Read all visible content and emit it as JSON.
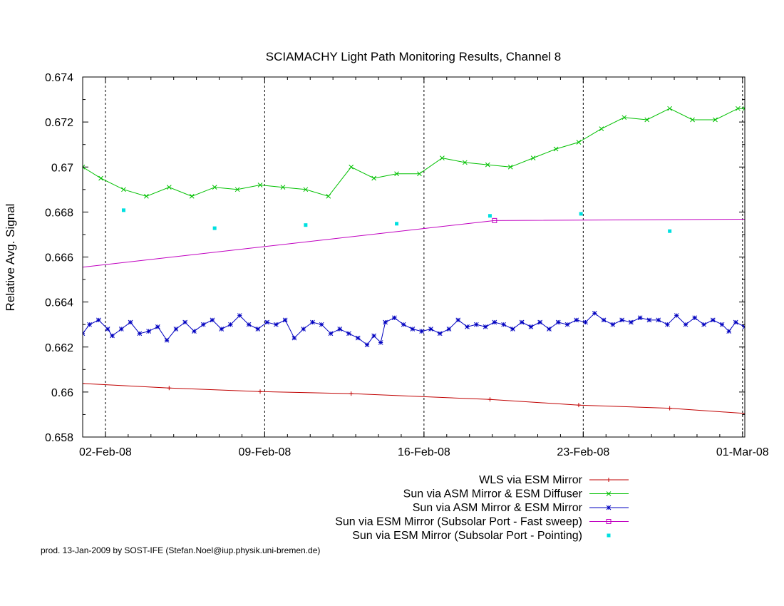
{
  "chart_data": {
    "type": "line",
    "title": "SCIAMACHY Light Path Monitoring Results, Channel 8",
    "xlabel": "",
    "ylabel": "Relative Avg. Signal",
    "x_unit": "day of 2008 (01-Feb-08 = 32)",
    "xlim": [
      31.7,
      60.8
    ],
    "ylim": [
      0.658,
      0.674
    ],
    "x_ticks": [
      {
        "x": 32.7,
        "label": "02-Feb-08"
      },
      {
        "x": 39.7,
        "label": "09-Feb-08"
      },
      {
        "x": 46.7,
        "label": "16-Feb-08"
      },
      {
        "x": 53.7,
        "label": "23-Feb-08"
      },
      {
        "x": 60.7,
        "label": "01-Mar-08"
      }
    ],
    "y_ticks": [
      {
        "y": 0.658,
        "label": "0.658"
      },
      {
        "y": 0.66,
        "label": "0.66"
      },
      {
        "y": 0.662,
        "label": "0.662"
      },
      {
        "y": 0.664,
        "label": "0.664"
      },
      {
        "y": 0.666,
        "label": "0.666"
      },
      {
        "y": 0.668,
        "label": "0.668"
      },
      {
        "y": 0.67,
        "label": "0.67"
      },
      {
        "y": 0.672,
        "label": "0.672"
      },
      {
        "y": 0.674,
        "label": "0.674"
      }
    ],
    "grid": "dashed at x ticks, none horizontal",
    "legend_position": "below plot, right-aligned",
    "series": [
      {
        "name": "WLS via ESM Mirror",
        "color": "#c00000",
        "marker": "plus",
        "style": "line",
        "points": [
          [
            31.7,
            0.66038
          ],
          [
            35.5,
            0.66018
          ],
          [
            39.5,
            0.66002
          ],
          [
            43.5,
            0.65993
          ],
          [
            49.6,
            0.65967
          ],
          [
            53.5,
            0.65942
          ],
          [
            57.5,
            0.65928
          ],
          [
            60.8,
            0.65905
          ]
        ]
      },
      {
        "name": "Sun via ASM Mirror & ESM Diffuser",
        "color": "#00c000",
        "marker": "x",
        "style": "line",
        "points": [
          [
            31.7,
            0.67
          ],
          [
            32.5,
            0.6695
          ],
          [
            33.5,
            0.669
          ],
          [
            34.5,
            0.6687
          ],
          [
            35.5,
            0.6691
          ],
          [
            36.5,
            0.6687
          ],
          [
            37.5,
            0.6691
          ],
          [
            38.5,
            0.669
          ],
          [
            39.5,
            0.6692
          ],
          [
            40.5,
            0.6691
          ],
          [
            41.5,
            0.669
          ],
          [
            42.5,
            0.6687
          ],
          [
            43.5,
            0.67
          ],
          [
            44.5,
            0.6695
          ],
          [
            45.5,
            0.6697
          ],
          [
            46.5,
            0.6697
          ],
          [
            47.5,
            0.6704
          ],
          [
            48.5,
            0.6702
          ],
          [
            49.5,
            0.6701
          ],
          [
            50.5,
            0.67
          ],
          [
            51.5,
            0.6704
          ],
          [
            52.5,
            0.6708
          ],
          [
            53.5,
            0.6711
          ],
          [
            54.5,
            0.6717
          ],
          [
            55.5,
            0.6722
          ],
          [
            56.5,
            0.6721
          ],
          [
            57.5,
            0.6726
          ],
          [
            58.5,
            0.6721
          ],
          [
            59.5,
            0.6721
          ],
          [
            60.5,
            0.6726
          ],
          [
            60.8,
            0.6726
          ]
        ]
      },
      {
        "name": "Sun via ASM Mirror & ESM Mirror",
        "color": "#0000c0",
        "marker": "star",
        "style": "line",
        "points": [
          [
            31.7,
            0.6626
          ],
          [
            32.0,
            0.663
          ],
          [
            32.4,
            0.6632
          ],
          [
            32.8,
            0.6628
          ],
          [
            33.0,
            0.6625
          ],
          [
            33.4,
            0.6628
          ],
          [
            33.8,
            0.6631
          ],
          [
            34.2,
            0.6626
          ],
          [
            34.6,
            0.6627
          ],
          [
            35.0,
            0.6629
          ],
          [
            35.4,
            0.6623
          ],
          [
            35.8,
            0.6628
          ],
          [
            36.2,
            0.6631
          ],
          [
            36.6,
            0.6627
          ],
          [
            37.0,
            0.663
          ],
          [
            37.4,
            0.6632
          ],
          [
            37.8,
            0.6628
          ],
          [
            38.2,
            0.663
          ],
          [
            38.6,
            0.6634
          ],
          [
            39.0,
            0.663
          ],
          [
            39.4,
            0.6628
          ],
          [
            39.8,
            0.6631
          ],
          [
            40.2,
            0.663
          ],
          [
            40.6,
            0.6632
          ],
          [
            41.0,
            0.6624
          ],
          [
            41.4,
            0.6628
          ],
          [
            41.8,
            0.6631
          ],
          [
            42.2,
            0.663
          ],
          [
            42.6,
            0.6626
          ],
          [
            43.0,
            0.6628
          ],
          [
            43.4,
            0.6626
          ],
          [
            43.8,
            0.6624
          ],
          [
            44.2,
            0.6621
          ],
          [
            44.5,
            0.6625
          ],
          [
            44.8,
            0.6622
          ],
          [
            45.0,
            0.6631
          ],
          [
            45.4,
            0.6633
          ],
          [
            45.8,
            0.663
          ],
          [
            46.2,
            0.6628
          ],
          [
            46.6,
            0.6627
          ],
          [
            47.0,
            0.6628
          ],
          [
            47.4,
            0.6626
          ],
          [
            47.8,
            0.6628
          ],
          [
            48.2,
            0.6632
          ],
          [
            48.6,
            0.6629
          ],
          [
            49.0,
            0.663
          ],
          [
            49.4,
            0.6629
          ],
          [
            49.8,
            0.6631
          ],
          [
            50.2,
            0.663
          ],
          [
            50.6,
            0.6628
          ],
          [
            51.0,
            0.6631
          ],
          [
            51.4,
            0.6629
          ],
          [
            51.8,
            0.6631
          ],
          [
            52.2,
            0.6628
          ],
          [
            52.6,
            0.6631
          ],
          [
            53.0,
            0.663
          ],
          [
            53.4,
            0.6632
          ],
          [
            53.8,
            0.6631
          ],
          [
            54.2,
            0.6635
          ],
          [
            54.6,
            0.6632
          ],
          [
            55.0,
            0.663
          ],
          [
            55.4,
            0.6632
          ],
          [
            55.8,
            0.6631
          ],
          [
            56.2,
            0.6633
          ],
          [
            56.6,
            0.6632
          ],
          [
            57.0,
            0.6632
          ],
          [
            57.4,
            0.663
          ],
          [
            57.8,
            0.6634
          ],
          [
            58.2,
            0.663
          ],
          [
            58.6,
            0.6633
          ],
          [
            59.0,
            0.663
          ],
          [
            59.4,
            0.6632
          ],
          [
            59.8,
            0.663
          ],
          [
            60.1,
            0.6627
          ],
          [
            60.4,
            0.6631
          ],
          [
            60.8,
            0.6629
          ]
        ]
      },
      {
        "name": "Sun via ESM Mirror (Subsolar Port - Fast sweep)",
        "color": "#c000c0",
        "marker": "square",
        "style": "line",
        "points": [
          [
            31.7,
            0.66555
          ],
          [
            49.8,
            0.66762
          ],
          [
            60.8,
            0.66768
          ]
        ],
        "marked_points": [
          [
            49.8,
            0.66762
          ]
        ]
      },
      {
        "name": "Sun via ESM Mirror (Subsolar Port - Pointing)",
        "color": "#00e0e0",
        "marker": "dot",
        "style": "points",
        "points": [
          [
            33.5,
            0.66808
          ],
          [
            37.5,
            0.66728
          ],
          [
            41.5,
            0.66742
          ],
          [
            45.5,
            0.66748
          ],
          [
            49.6,
            0.66783
          ],
          [
            53.6,
            0.66792
          ],
          [
            57.5,
            0.66715
          ]
        ]
      }
    ]
  },
  "footer": "prod. 13-Jan-2009 by SOST-IFE (Stefan.Noel@iup.physik.uni-bremen.de)"
}
